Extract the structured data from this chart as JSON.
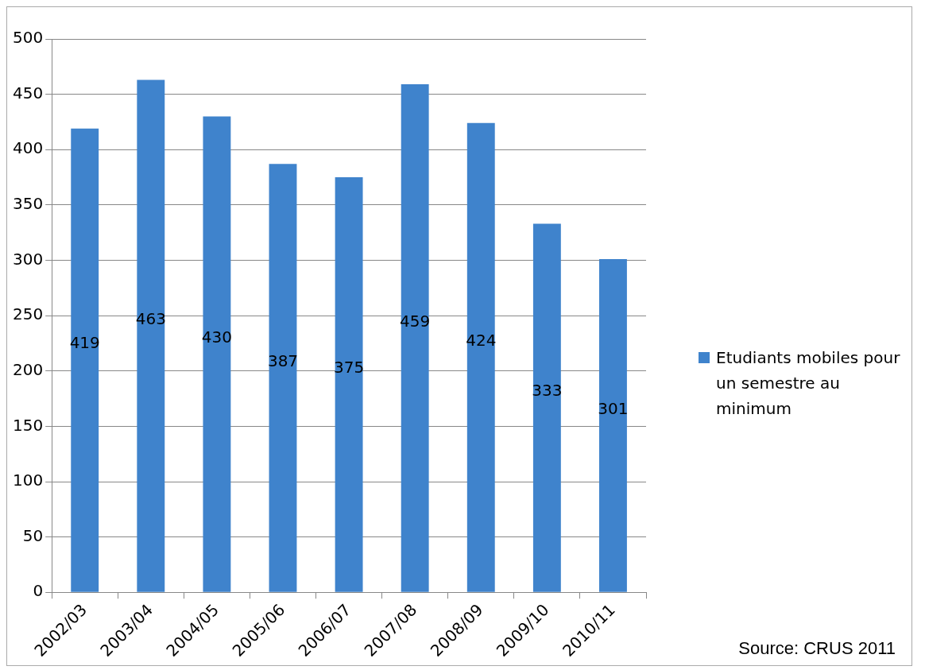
{
  "chart_data": {
    "type": "bar",
    "categories": [
      "2002/03",
      "2003/04",
      "2004/05",
      "2005/06",
      "2006/07",
      "2007/08",
      "2008/09",
      "2009/10",
      "2010/11"
    ],
    "series": [
      {
        "name": "Etudiants mobiles pour un semestre au minimum",
        "color": "#3f83cc",
        "values": [
          419,
          463,
          430,
          387,
          375,
          459,
          424,
          333,
          301
        ]
      }
    ],
    "ylim": [
      0,
      500
    ],
    "yticks": [
      0,
      50,
      100,
      150,
      200,
      250,
      300,
      350,
      400,
      450,
      500
    ],
    "grid": "y",
    "legend": "right",
    "data_labels": true,
    "annotations": [
      "Source: CRUS 2011"
    ]
  }
}
